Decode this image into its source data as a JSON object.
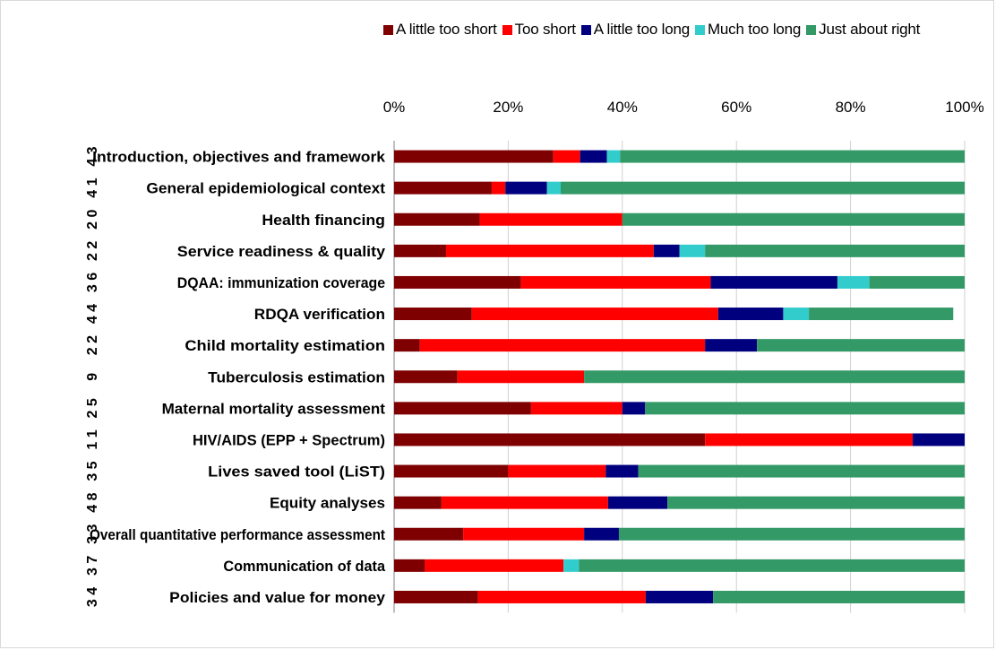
{
  "chart_data": {
    "type": "bar",
    "orientation": "horizontal",
    "stacked": true,
    "percent_stacked": true,
    "title": "",
    "xlabel": "",
    "ylabel": "",
    "xlim": [
      0,
      100
    ],
    "x_ticks": [
      "0%",
      "20%",
      "40%",
      "60%",
      "80%",
      "100%"
    ],
    "legend_position": "top",
    "grid": true,
    "categories": [
      "Introduction, objectives and framework",
      "General epidemiological context",
      "Health financing",
      "Service readiness & quality",
      "DQAA: immunization coverage",
      "RDQA verification",
      "Child mortality estimation",
      "Tuberculosis estimation",
      "Maternal mortality assessment",
      "HIV/AIDS (EPP + Spectrum)",
      "Lives saved tool (LiST)",
      "Equity analyses",
      "Overall quantitative performance assessment",
      "Communication of data",
      "Policies and value for money"
    ],
    "n_labels": [
      "4 3",
      "4 1",
      "2 0",
      "2 2",
      "3 6",
      "4 4",
      "2 2",
      "9",
      "2 5",
      "1 1",
      "3 5",
      "4 8",
      "3 3",
      "3 7",
      "3 4"
    ],
    "series": [
      {
        "name": "A little too short",
        "color": "#7f0000",
        "values": [
          27.9,
          17.1,
          15.0,
          9.1,
          22.2,
          13.6,
          4.5,
          11.1,
          24.0,
          54.5,
          20.0,
          8.3,
          12.1,
          5.4,
          14.7
        ]
      },
      {
        "name": "Too short",
        "color": "#ff0000",
        "values": [
          4.7,
          2.4,
          25.0,
          36.4,
          33.3,
          43.2,
          50.0,
          22.2,
          16.0,
          36.4,
          17.1,
          29.2,
          21.2,
          24.3,
          29.4
        ]
      },
      {
        "name": "A little too long",
        "color": "#00007f",
        "values": [
          4.7,
          7.3,
          0,
          4.5,
          22.2,
          11.4,
          9.1,
          0,
          4.0,
          9.1,
          5.7,
          10.4,
          6.1,
          0,
          11.8
        ]
      },
      {
        "name": "Much too long",
        "color": "#33cccc",
        "values": [
          2.3,
          2.4,
          0,
          4.5,
          5.6,
          4.5,
          0,
          0,
          0,
          0,
          0,
          0,
          0,
          2.7,
          0
        ]
      },
      {
        "name": "Just about right",
        "color": "#339966",
        "values": [
          60.4,
          70.8,
          60.0,
          45.5,
          16.7,
          25.3,
          36.4,
          66.7,
          56.0,
          0,
          57.2,
          52.1,
          60.6,
          67.6,
          44.1
        ]
      }
    ]
  }
}
